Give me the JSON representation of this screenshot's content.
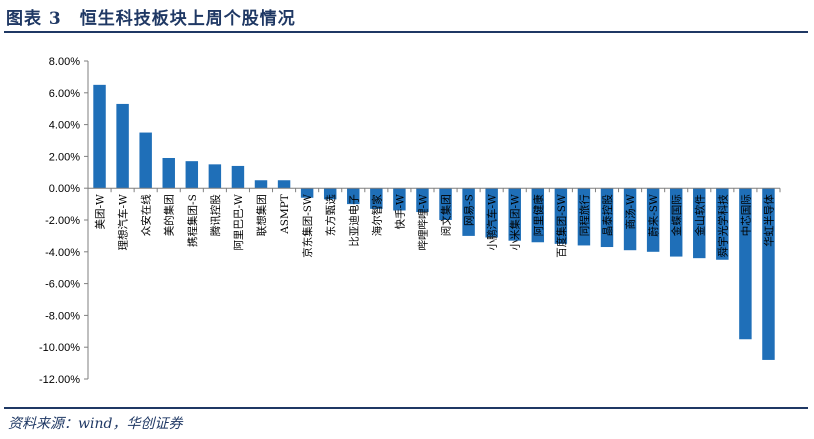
{
  "figure": {
    "title": "图表 3　恒生科技板块上周个股情况",
    "source": "资料来源：wind，华创证券"
  },
  "colors": {
    "bar": "#1f6fb8",
    "rule": "#1f3864",
    "axis": "#7f7f7f"
  },
  "chart_data": {
    "type": "bar",
    "title": "",
    "xlabel": "",
    "ylabel": "",
    "ylim": [
      -0.12,
      0.08
    ],
    "yticks": [
      0.08,
      0.06,
      0.04,
      0.02,
      0.0,
      -0.02,
      -0.04,
      -0.06,
      -0.08,
      -0.1,
      -0.12
    ],
    "ytick_labels": [
      "8.00%",
      "6.00%",
      "4.00%",
      "2.00%",
      "0.00%",
      "-2.00%",
      "-4.00%",
      "-6.00%",
      "-8.00%",
      "-10.00%",
      "-12.00%"
    ],
    "grid": false,
    "legend": "none",
    "categories": [
      "美团-W",
      "理想汽车-W",
      "众安在线",
      "美的集团",
      "携程集团-S",
      "腾讯控股",
      "阿里巴巴-W",
      "联想集团",
      "ASMPT",
      "京东集团-SW",
      "东方甄选",
      "比亚迪电子",
      "海尔智家",
      "快手-W",
      "哔哩哔哩-W",
      "阅文集团",
      "网易-S",
      "小鹏汽车-W",
      "小米集团-W",
      "阿里健康",
      "百度集团-SW",
      "同程旅行",
      "晶泰控股",
      "商汤-W",
      "蔚来-SW",
      "金蝶国际",
      "金山软件",
      "舜宇光学科技",
      "中芯国际",
      "华虹半导体"
    ],
    "values": [
      0.065,
      0.053,
      0.035,
      0.019,
      0.017,
      0.015,
      0.014,
      0.005,
      0.005,
      -0.006,
      -0.007,
      -0.01,
      -0.013,
      -0.014,
      -0.015,
      -0.02,
      -0.03,
      -0.031,
      -0.033,
      -0.034,
      -0.035,
      -0.036,
      -0.037,
      -0.039,
      -0.04,
      -0.043,
      -0.044,
      -0.045,
      -0.095,
      -0.108
    ]
  }
}
